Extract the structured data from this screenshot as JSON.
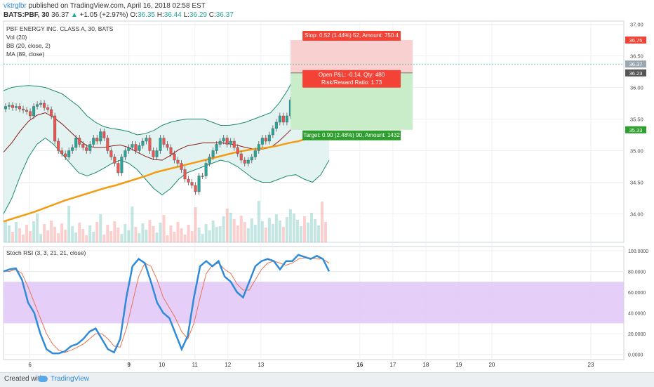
{
  "header": {
    "user": "vktrglbr",
    "published": "published on TradingView.com, April 16, 2018 02:58 EST",
    "symbol": "BATS:PBF, 30",
    "last": "36.37",
    "change_arrow": "▲",
    "change": "+1.05 (+2.97%)",
    "o_label": "O:",
    "o": "36.35",
    "h_label": "H:",
    "h": "36.44",
    "l_label": "L:",
    "l": "36.29",
    "c_label": "C:",
    "c": "36.37"
  },
  "legend": [
    "PBF ENERGY INC. CLASS A, 30, BATS",
    "Vol (20)",
    "BB (20, close, 2)",
    "MA (89, close)"
  ],
  "stoch_title": "Stoch RSI (3, 3, 21, 21, close)",
  "footer": {
    "created": "Created with",
    "brand": "TradingView"
  },
  "colors": {
    "up": "#26a69a",
    "down": "#ef5350",
    "bb": "#1c8a6e",
    "bb_fill": "#e0f2f1",
    "ma": "#f39c12",
    "mid": "#8b1a1a",
    "k": "#2f8bd8",
    "d": "#e8744f",
    "band": "#e1c6f7",
    "stop_zone": "#f9d0d0",
    "target_zone": "#c9ecc9",
    "stop_label": "#f44336",
    "target_label": "#2e9e2e",
    "price_tag": "#9aa7b0"
  },
  "chart_data": [
    {
      "type": "candlestick",
      "panel": "price",
      "y_ticks": [
        34.0,
        34.5,
        35.0,
        35.5,
        36.0,
        36.5,
        37.0
      ],
      "y_tick_labels": [
        "34.00",
        "34.50",
        "35.00",
        "35.50",
        "36.00",
        "36.50",
        "37.00"
      ],
      "ylim": [
        33.55,
        37.05
      ],
      "x_range": [
        5.2,
        24.0
      ],
      "x_ticks": [
        6,
        9,
        10,
        11,
        12,
        13,
        16,
        17,
        18,
        19,
        20,
        23
      ],
      "x_tick_labels": [
        "6",
        "9",
        "10",
        "11",
        "12",
        "13",
        "16",
        "17",
        "18",
        "19",
        "20",
        "23"
      ],
      "x_tick_bold": [
        false,
        true,
        false,
        false,
        false,
        false,
        true,
        false,
        false,
        false,
        false,
        false
      ],
      "candles_closes": [
        35.7,
        35.72,
        35.68,
        35.7,
        35.66,
        35.64,
        35.62,
        35.55,
        35.7,
        35.73,
        35.75,
        35.68,
        35.65,
        35.55,
        35.15,
        35.0,
        34.95,
        34.9,
        35.0,
        35.05,
        35.2,
        35.1,
        35.05,
        35.0,
        35.1,
        35.2,
        35.15,
        35.3,
        35.2,
        35.0,
        34.9,
        34.8,
        34.65,
        34.9,
        35.0,
        35.05,
        35.1,
        35.0,
        35.08,
        35.15,
        35.2,
        35.0,
        34.9,
        35.0,
        35.2,
        35.1,
        35.05,
        34.95,
        34.85,
        34.8,
        34.7,
        34.55,
        34.5,
        34.45,
        34.35,
        34.6,
        34.6,
        34.8,
        34.9,
        35.0,
        35.1,
        35.15,
        35.2,
        35.1,
        35.15,
        35.05,
        34.95,
        34.85,
        34.8,
        34.85,
        34.9,
        35.0,
        35.1,
        35.2,
        35.15,
        35.25,
        35.35,
        35.45,
        35.55,
        35.45,
        35.55,
        35.8,
        36.1,
        36.2,
        36.3,
        36.25,
        36.35,
        36.4,
        36.5,
        36.55,
        36.45,
        36.37
      ],
      "bb_upper": [
        35.95,
        36.0,
        36.02,
        36.03,
        36.02,
        36.0,
        35.95,
        35.9,
        35.8,
        35.7,
        35.55,
        35.45,
        35.38,
        35.35,
        35.33,
        35.3,
        35.25,
        35.27,
        35.32,
        35.4,
        35.45,
        35.48,
        35.5,
        35.5,
        35.5,
        35.45,
        35.4,
        35.4,
        35.42,
        35.45,
        35.5,
        35.55,
        35.6,
        35.75,
        35.95,
        36.2,
        36.45,
        36.65,
        36.78,
        36.85
      ],
      "bb_lower": [
        34.0,
        34.25,
        34.6,
        34.9,
        35.1,
        35.2,
        35.1,
        34.95,
        34.8,
        34.65,
        34.6,
        34.65,
        34.72,
        34.8,
        34.85,
        34.8,
        34.7,
        34.55,
        34.4,
        34.3,
        34.4,
        34.55,
        34.65,
        34.7,
        34.75,
        34.8,
        34.85,
        34.82,
        34.75,
        34.65,
        34.55,
        34.5,
        34.5,
        34.55,
        34.6,
        34.62,
        34.55,
        34.5,
        34.62,
        34.85
      ],
      "ma89": [
        33.88,
        33.93,
        33.98,
        34.03,
        34.09,
        34.15,
        34.21,
        34.26,
        34.31,
        34.36,
        34.41,
        34.45,
        34.5,
        34.55,
        34.6,
        34.66,
        34.7,
        34.74,
        34.78,
        34.82,
        34.86,
        34.9,
        34.94,
        34.98,
        35.01,
        35.03,
        35.05,
        35.08,
        35.12,
        35.15,
        35.2,
        35.25,
        35.3
      ],
      "position": {
        "entry": 36.23,
        "stop": 36.75,
        "target": 35.33,
        "x_start": 13.9,
        "x_end": 17.6,
        "stop_label": "Stop: 0.52 (1.44%) 52, Amount: 750.4",
        "open_label": "Open P&L: -0.14, Qty: 480",
        "rr_label": "Risk/Reward Ratio: 1.73",
        "target_label": "Target: 0.90 (2.48%) 90, Amount: 1432"
      },
      "price_tags": [
        {
          "value": 36.75,
          "label": "36.75",
          "color": "#f44336"
        },
        {
          "value": 36.37,
          "label": "36.37",
          "color": "#9aa7b0"
        },
        {
          "value": 36.23,
          "label": "36.23",
          "color": "#555555"
        },
        {
          "value": 35.33,
          "label": "35.33",
          "color": "#2e9e2e"
        }
      ]
    },
    {
      "type": "line",
      "panel": "stoch_rsi",
      "ylim": [
        -5,
        104
      ],
      "y_ticks": [
        0,
        20,
        40,
        60,
        80,
        100
      ],
      "y_tick_labels": [
        "0.0000",
        "20.0000",
        "40.0000",
        "60.0000",
        "80.0000",
        "100.0000"
      ],
      "band": [
        30,
        70
      ],
      "series": [
        {
          "key": "k",
          "values": [
            80,
            82,
            83,
            72,
            50,
            40,
            20,
            5,
            1,
            1,
            3,
            8,
            10,
            15,
            22,
            25,
            15,
            5,
            2,
            15,
            55,
            85,
            92,
            88,
            70,
            50,
            40,
            35,
            20,
            5,
            18,
            55,
            85,
            90,
            85,
            90,
            75,
            70,
            60,
            55,
            70,
            85,
            90,
            92,
            90,
            82,
            90,
            90,
            96,
            94,
            92,
            95,
            92,
            80
          ]
        },
        {
          "key": "d",
          "values": [
            80,
            80,
            82,
            78,
            65,
            50,
            35,
            20,
            10,
            4,
            2,
            4,
            7,
            10,
            15,
            20,
            20,
            15,
            8,
            7,
            25,
            50,
            75,
            88,
            85,
            72,
            55,
            45,
            35,
            22,
            15,
            30,
            55,
            78,
            86,
            88,
            82,
            78,
            68,
            62,
            62,
            72,
            82,
            88,
            90,
            88,
            86,
            88,
            92,
            93,
            93,
            92,
            92,
            88
          ]
        }
      ]
    }
  ]
}
